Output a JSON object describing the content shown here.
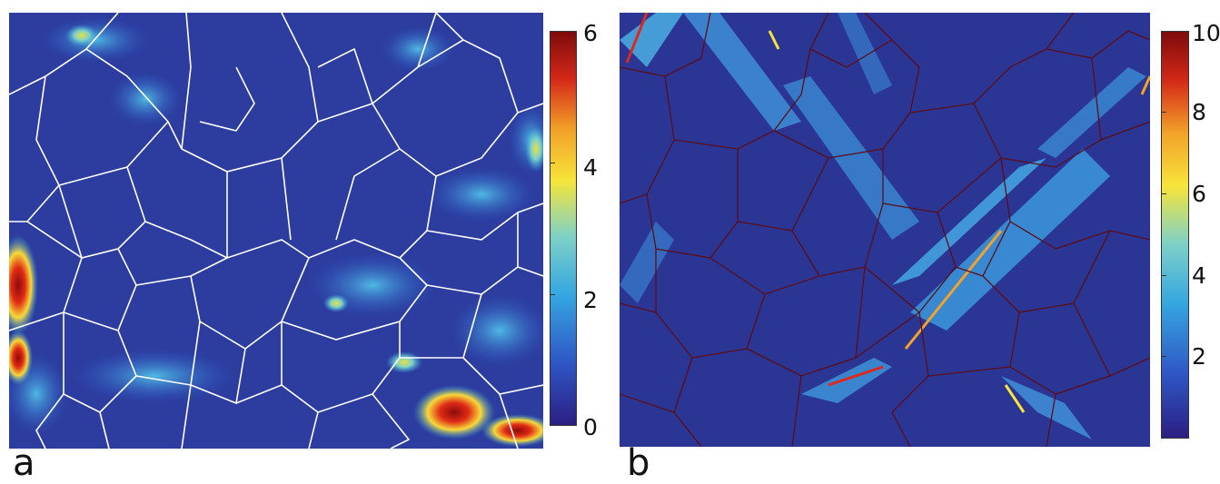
{
  "panels": [
    {
      "label": "a",
      "colorbar": {
        "min": 0,
        "max": 6,
        "ticks": [
          "6",
          "4",
          "2",
          "0"
        ]
      },
      "boundary_color": "#ffffff"
    },
    {
      "label": "b",
      "colorbar": {
        "min": 0,
        "max": 10,
        "ticks": [
          "10",
          "8",
          "6",
          "4",
          "2"
        ]
      },
      "boundary_color": "#7a1010"
    }
  ],
  "colormap": [
    "#2b1f83",
    "#2f57c5",
    "#35a6e0",
    "#7fd1c6",
    "#f6e53a",
    "#f2a229",
    "#d42818",
    "#7d0b0b"
  ]
}
